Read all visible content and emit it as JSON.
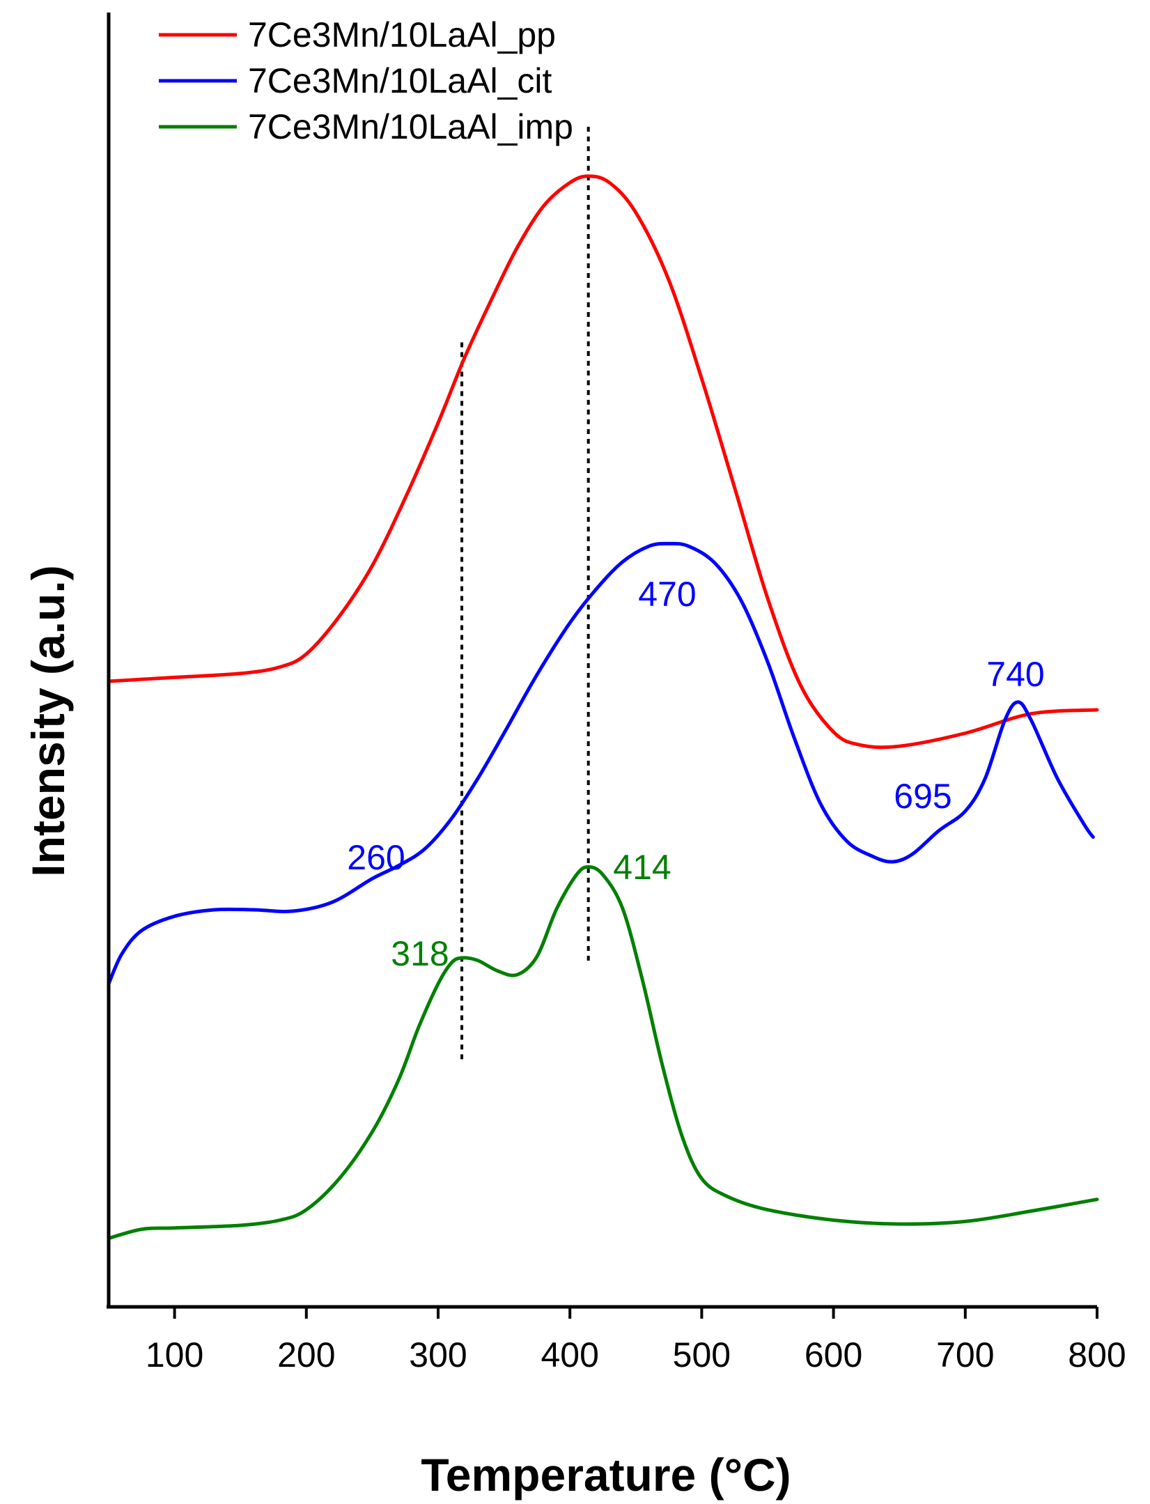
{
  "chart_data": {
    "type": "line",
    "title": "",
    "xlabel": "Temperature (°C)",
    "ylabel": "Intensity (a.u.)",
    "xlim": [
      50,
      800
    ],
    "ylim": [
      0,
      100
    ],
    "xticks": [
      100,
      200,
      300,
      400,
      500,
      600,
      700,
      800
    ],
    "ytick_labels": "none",
    "grid": false,
    "legend_position": "top-left",
    "series": [
      {
        "name": "7Ce3Mn/10LaAl_pp",
        "color": "#ff0000",
        "points": [
          [
            50,
            48.5
          ],
          [
            100,
            48.8
          ],
          [
            150,
            49.1
          ],
          [
            180,
            49.6
          ],
          [
            200,
            50.6
          ],
          [
            225,
            53.5
          ],
          [
            250,
            57.4
          ],
          [
            275,
            62.6
          ],
          [
            300,
            68.4
          ],
          [
            320,
            73.4
          ],
          [
            340,
            77.8
          ],
          [
            360,
            81.9
          ],
          [
            380,
            85.1
          ],
          [
            400,
            86.9
          ],
          [
            414,
            87.4
          ],
          [
            430,
            86.9
          ],
          [
            450,
            84.6
          ],
          [
            475,
            79.4
          ],
          [
            500,
            71.8
          ],
          [
            525,
            63.4
          ],
          [
            550,
            54.9
          ],
          [
            575,
            48.2
          ],
          [
            600,
            44.6
          ],
          [
            620,
            43.6
          ],
          [
            650,
            43.5
          ],
          [
            700,
            44.5
          ],
          [
            750,
            46.0
          ],
          [
            800,
            46.3
          ]
        ]
      },
      {
        "name": "7Ce3Mn/10LaAl_cit",
        "color": "#0000ff",
        "points": [
          [
            50,
            25.2
          ],
          [
            60,
            27.5
          ],
          [
            75,
            29.3
          ],
          [
            100,
            30.4
          ],
          [
            130,
            30.9
          ],
          [
            160,
            30.9
          ],
          [
            190,
            30.8
          ],
          [
            220,
            31.5
          ],
          [
            250,
            33.3
          ],
          [
            270,
            34.3
          ],
          [
            290,
            35.6
          ],
          [
            310,
            37.9
          ],
          [
            330,
            41.0
          ],
          [
            350,
            44.5
          ],
          [
            375,
            49.0
          ],
          [
            400,
            53.0
          ],
          [
            420,
            55.6
          ],
          [
            440,
            57.7
          ],
          [
            460,
            58.9
          ],
          [
            475,
            59.1
          ],
          [
            490,
            58.9
          ],
          [
            510,
            57.6
          ],
          [
            530,
            54.7
          ],
          [
            550,
            50.0
          ],
          [
            570,
            44.2
          ],
          [
            590,
            39.1
          ],
          [
            610,
            36.2
          ],
          [
            630,
            35.0
          ],
          [
            645,
            34.6
          ],
          [
            660,
            35.2
          ],
          [
            680,
            37.0
          ],
          [
            700,
            38.5
          ],
          [
            715,
            41.0
          ],
          [
            730,
            45.5
          ],
          [
            740,
            46.9
          ],
          [
            750,
            45.5
          ],
          [
            770,
            41.0
          ],
          [
            790,
            37.5
          ],
          [
            797,
            36.5
          ]
        ]
      },
      {
        "name": "7Ce3Mn/10LaAl_imp",
        "color": "#008000",
        "points": [
          [
            50,
            5.6
          ],
          [
            75,
            6.3
          ],
          [
            100,
            6.4
          ],
          [
            150,
            6.6
          ],
          [
            180,
            7.0
          ],
          [
            200,
            7.8
          ],
          [
            225,
            10.2
          ],
          [
            250,
            13.8
          ],
          [
            270,
            17.8
          ],
          [
            285,
            21.8
          ],
          [
            300,
            25.2
          ],
          [
            310,
            26.8
          ],
          [
            318,
            27.2
          ],
          [
            330,
            27.0
          ],
          [
            345,
            26.2
          ],
          [
            360,
            25.9
          ],
          [
            375,
            27.3
          ],
          [
            390,
            31.0
          ],
          [
            405,
            33.6
          ],
          [
            414,
            34.2
          ],
          [
            425,
            33.6
          ],
          [
            440,
            31.0
          ],
          [
            455,
            25.5
          ],
          [
            470,
            19.0
          ],
          [
            485,
            13.5
          ],
          [
            500,
            10.2
          ],
          [
            520,
            8.8
          ],
          [
            550,
            7.8
          ],
          [
            600,
            7.0
          ],
          [
            650,
            6.7
          ],
          [
            700,
            6.9
          ],
          [
            750,
            7.7
          ],
          [
            800,
            8.6
          ]
        ]
      }
    ],
    "annotations": [
      {
        "text": "470",
        "series": "7Ce3Mn/10LaAl_cit",
        "color": "#0000ff"
      },
      {
        "text": "740",
        "series": "7Ce3Mn/10LaAl_cit",
        "color": "#0000ff"
      },
      {
        "text": "695",
        "series": "7Ce3Mn/10LaAl_cit",
        "color": "#0000ff"
      },
      {
        "text": "260",
        "series": "7Ce3Mn/10LaAl_cit",
        "color": "#0000ff"
      },
      {
        "text": "414",
        "series": "7Ce3Mn/10LaAl_imp",
        "color": "#008000"
      },
      {
        "text": "318",
        "series": "7Ce3Mn/10LaAl_imp",
        "color": "#008000"
      }
    ],
    "reference_lines": [
      {
        "x": 318,
        "y_from": 19.2,
        "y_to": 74.6,
        "style": "dotted",
        "color": "#000000"
      },
      {
        "x": 414,
        "y_from": 26.8,
        "y_to": 91.2,
        "style": "dotted",
        "color": "#000000"
      }
    ]
  }
}
